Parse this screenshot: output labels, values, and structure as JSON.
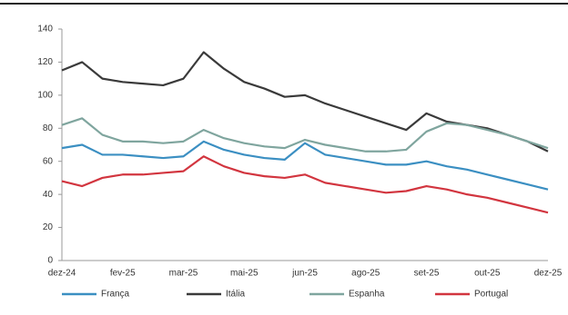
{
  "chart_data": {
    "type": "line",
    "categories": [
      "dez-24",
      null,
      null,
      "fev-25",
      null,
      null,
      "mar-25",
      null,
      null,
      "mai-25",
      null,
      null,
      "jun-25",
      null,
      null,
      "ago-25",
      null,
      null,
      "set-25",
      null,
      null,
      "out-25",
      null,
      null,
      "dez-25"
    ],
    "series": [
      {
        "name": "França",
        "color": "#3b8fc2",
        "values": [
          68,
          70,
          64,
          64,
          63,
          62,
          63,
          72,
          67,
          64,
          62,
          61,
          71,
          64,
          62,
          60,
          58,
          58,
          60,
          57,
          55,
          52,
          49,
          46,
          43
        ]
      },
      {
        "name": "Itália",
        "color": "#3a3a3a",
        "values": [
          115,
          120,
          110,
          108,
          107,
          106,
          110,
          126,
          116,
          108,
          104,
          99,
          100,
          95,
          91,
          87,
          83,
          79,
          89,
          84,
          82,
          80,
          76,
          72,
          66
        ]
      },
      {
        "name": "Espanha",
        "color": "#7fa59e",
        "values": [
          82,
          86,
          76,
          72,
          72,
          71,
          72,
          79,
          74,
          71,
          69,
          68,
          73,
          70,
          68,
          66,
          66,
          67,
          78,
          83,
          82,
          79,
          76,
          72,
          68
        ]
      },
      {
        "name": "Portugal",
        "color": "#d2353f",
        "values": [
          48,
          45,
          50,
          52,
          52,
          53,
          54,
          63,
          57,
          53,
          51,
          50,
          52,
          47,
          45,
          43,
          41,
          42,
          45,
          43,
          40,
          38,
          35,
          32,
          29
        ]
      }
    ],
    "ylim": [
      0,
      140
    ],
    "yticks": [
      0,
      20,
      40,
      60,
      80,
      100,
      120,
      140
    ]
  }
}
